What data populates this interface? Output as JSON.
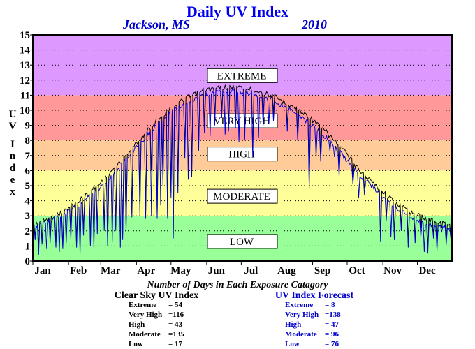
{
  "chart_data": {
    "type": "line",
    "title": "Daily UV Index",
    "location": "Jackson, MS",
    "year": "2010",
    "ylabel": "UV Index",
    "ylim": [
      0,
      15
    ],
    "xlim": [
      1,
      365
    ],
    "yticks": [
      "0",
      "1",
      "2",
      "3",
      "4",
      "5",
      "6",
      "7",
      "8",
      "9",
      "10",
      "11",
      "12",
      "13",
      "14",
      "15"
    ],
    "months": [
      {
        "label": "Jan",
        "day": 1
      },
      {
        "label": "Feb",
        "day": 32
      },
      {
        "label": "Mar",
        "day": 60
      },
      {
        "label": "Apr",
        "day": 91
      },
      {
        "label": "May",
        "day": 121
      },
      {
        "label": "Jun",
        "day": 152
      },
      {
        "label": "Jul",
        "day": 182
      },
      {
        "label": "Aug",
        "day": 213
      },
      {
        "label": "Sep",
        "day": 244
      },
      {
        "label": "Oct",
        "day": 274
      },
      {
        "label": "Nov",
        "day": 305
      },
      {
        "label": "Dec",
        "day": 335
      }
    ],
    "grid": true,
    "zones": [
      {
        "label": "LOW",
        "from": 0,
        "to": 3,
        "color": "#99ff99",
        "label_y": 1.3
      },
      {
        "label": "MODERATE",
        "from": 3,
        "to": 6,
        "color": "#ffff99",
        "label_y": 4.3
      },
      {
        "label": "HIGH",
        "from": 6,
        "to": 8,
        "color": "#ffcc99",
        "label_y": 7.1
      },
      {
        "label": "VERY HIGH",
        "from": 8,
        "to": 11,
        "color": "#ff9999",
        "label_y": 9.3
      },
      {
        "label": "EXTREME",
        "from": 11,
        "to": 15,
        "color": "#dd99ff",
        "label_y": 12.3
      }
    ],
    "series": [
      {
        "key": "clear",
        "color": "#000000",
        "anchors": [
          [
            1,
            2.6
          ],
          [
            15,
            3.0
          ],
          [
            31,
            3.6
          ],
          [
            45,
            4.4
          ],
          [
            59,
            5.3
          ],
          [
            75,
            6.6
          ],
          [
            90,
            7.9
          ],
          [
            105,
            9.2
          ],
          [
            120,
            10.3
          ],
          [
            135,
            11.0
          ],
          [
            150,
            11.5
          ],
          [
            165,
            11.7
          ],
          [
            180,
            11.7
          ],
          [
            195,
            11.5
          ],
          [
            210,
            11.1
          ],
          [
            225,
            10.5
          ],
          [
            240,
            9.8
          ],
          [
            255,
            8.8
          ],
          [
            270,
            7.6
          ],
          [
            285,
            6.2
          ],
          [
            300,
            5.1
          ],
          [
            315,
            4.1
          ],
          [
            330,
            3.4
          ],
          [
            345,
            2.9
          ],
          [
            365,
            2.6
          ]
        ],
        "dips": [
          [
            3,
            1.6
          ],
          [
            6,
            1.0
          ],
          [
            9,
            1.3
          ],
          [
            16,
            1.5
          ],
          [
            21,
            1.2
          ],
          [
            27,
            1.0
          ],
          [
            34,
            1.8
          ],
          [
            39,
            1.2
          ],
          [
            45,
            2.0
          ],
          [
            51,
            1.3
          ],
          [
            57,
            2.1
          ],
          [
            63,
            2.3
          ],
          [
            66,
            1.3
          ],
          [
            73,
            2.3
          ],
          [
            79,
            1.7
          ],
          [
            82,
            2.3
          ],
          [
            87,
            3.2
          ],
          [
            94,
            4.0
          ],
          [
            99,
            3.1
          ],
          [
            104,
            6.0
          ],
          [
            109,
            3.1
          ],
          [
            114,
            5.5
          ],
          [
            118,
            3.0
          ],
          [
            121,
            4.5
          ],
          [
            123,
            1.8
          ],
          [
            127,
            5.0
          ],
          [
            133,
            7.3
          ],
          [
            139,
            6.0
          ],
          [
            145,
            7.8
          ],
          [
            150,
            9.0
          ],
          [
            159,
            9.5
          ],
          [
            165,
            10.0
          ],
          [
            171,
            9.0
          ],
          [
            177,
            9.2
          ],
          [
            185,
            8.5
          ],
          [
            192,
            7.3
          ],
          [
            201,
            9.5
          ],
          [
            210,
            9.8
          ],
          [
            222,
            9.0
          ],
          [
            231,
            8.5
          ],
          [
            241,
            5.2
          ],
          [
            251,
            7.0
          ],
          [
            267,
            6.0
          ],
          [
            279,
            5.5
          ],
          [
            289,
            4.8
          ],
          [
            303,
            1.6
          ],
          [
            308,
            3.0
          ],
          [
            315,
            1.7
          ],
          [
            321,
            2.3
          ],
          [
            327,
            1.2
          ],
          [
            333,
            1.5
          ],
          [
            338,
            1.9
          ],
          [
            344,
            0.8
          ],
          [
            349,
            1.8
          ],
          [
            352,
            1.0
          ],
          [
            356,
            2.2
          ],
          [
            360,
            1.4
          ],
          [
            364,
            1.8
          ]
        ]
      },
      {
        "key": "forecast",
        "color": "#0000cc",
        "anchors": [
          [
            1,
            2.4
          ],
          [
            15,
            2.8
          ],
          [
            31,
            3.4
          ],
          [
            45,
            4.1
          ],
          [
            59,
            5.0
          ],
          [
            75,
            6.3
          ],
          [
            90,
            7.6
          ],
          [
            105,
            8.9
          ],
          [
            120,
            10.0
          ],
          [
            135,
            10.7
          ],
          [
            150,
            11.2
          ],
          [
            165,
            11.4
          ],
          [
            180,
            11.4
          ],
          [
            195,
            11.2
          ],
          [
            210,
            10.8
          ],
          [
            225,
            10.2
          ],
          [
            240,
            9.4
          ],
          [
            255,
            8.4
          ],
          [
            270,
            7.2
          ],
          [
            285,
            5.9
          ],
          [
            300,
            4.8
          ],
          [
            315,
            3.8
          ],
          [
            330,
            3.1
          ],
          [
            345,
            2.6
          ],
          [
            365,
            2.3
          ]
        ],
        "dips": [
          [
            3,
            1.4
          ],
          [
            6,
            0.4
          ],
          [
            9,
            1.1
          ],
          [
            13,
            0.8
          ],
          [
            16,
            1.2
          ],
          [
            21,
            0.9
          ],
          [
            24,
            0.6
          ],
          [
            27,
            0.8
          ],
          [
            30,
            1.2
          ],
          [
            34,
            1.5
          ],
          [
            39,
            0.9
          ],
          [
            42,
            0.5
          ],
          [
            45,
            1.7
          ],
          [
            51,
            1.0
          ],
          [
            54,
            0.9
          ],
          [
            57,
            1.8
          ],
          [
            63,
            2.0
          ],
          [
            66,
            1.0
          ],
          [
            70,
            1.3
          ],
          [
            73,
            2.0
          ],
          [
            77,
            0.9
          ],
          [
            79,
            1.4
          ],
          [
            82,
            2.0
          ],
          [
            87,
            2.9
          ],
          [
            94,
            3.0
          ],
          [
            99,
            2.8
          ],
          [
            104,
            3.0
          ],
          [
            109,
            2.8
          ],
          [
            112,
            3.7
          ],
          [
            114,
            5.0
          ],
          [
            118,
            2.8
          ],
          [
            121,
            4.2
          ],
          [
            123,
            1.5
          ],
          [
            127,
            4.5
          ],
          [
            133,
            6.8
          ],
          [
            136,
            5.4
          ],
          [
            139,
            5.6
          ],
          [
            145,
            7.3
          ],
          [
            150,
            8.5
          ],
          [
            155,
            8.3
          ],
          [
            159,
            9.0
          ],
          [
            165,
            9.5
          ],
          [
            168,
            8.4
          ],
          [
            171,
            8.6
          ],
          [
            177,
            8.8
          ],
          [
            180,
            7.9
          ],
          [
            185,
            8.0
          ],
          [
            192,
            6.9
          ],
          [
            197,
            8.2
          ],
          [
            201,
            9.0
          ],
          [
            206,
            9.1
          ],
          [
            210,
            9.3
          ],
          [
            222,
            8.6
          ],
          [
            231,
            8.0
          ],
          [
            241,
            4.8
          ],
          [
            247,
            6.9
          ],
          [
            251,
            6.6
          ],
          [
            259,
            7.3
          ],
          [
            263,
            6.9
          ],
          [
            267,
            5.6
          ],
          [
            279,
            5.1
          ],
          [
            284,
            4.2
          ],
          [
            289,
            4.4
          ],
          [
            303,
            1.3
          ],
          [
            308,
            2.7
          ],
          [
            312,
            1.6
          ],
          [
            315,
            1.4
          ],
          [
            321,
            2.0
          ],
          [
            327,
            0.9
          ],
          [
            333,
            1.2
          ],
          [
            338,
            1.6
          ],
          [
            341,
            0.6
          ],
          [
            344,
            0.5
          ],
          [
            349,
            1.5
          ],
          [
            352,
            0.7
          ],
          [
            356,
            1.9
          ],
          [
            360,
            1.1
          ],
          [
            364,
            1.5
          ]
        ]
      }
    ]
  },
  "stats": {
    "heading": "Number of Days in Each Exposure Catagory",
    "clear": {
      "title": "Clear Sky UV Index",
      "rows": [
        {
          "label": "Extreme",
          "value": "=  54"
        },
        {
          "label": "Very High",
          "value": "=116"
        },
        {
          "label": "High",
          "value": "=  43"
        },
        {
          "label": "Moderate",
          "value": "=135"
        },
        {
          "label": "Low",
          "value": "=  17"
        }
      ]
    },
    "forecast": {
      "title": "UV Index Forecast",
      "rows": [
        {
          "label": "Extreme",
          "value": "=    8"
        },
        {
          "label": "Very High",
          "value": "=138"
        },
        {
          "label": "High",
          "value": "=  47"
        },
        {
          "label": "Moderate",
          "value": "=  96"
        },
        {
          "label": "Low",
          "value": "=  76"
        }
      ]
    }
  }
}
